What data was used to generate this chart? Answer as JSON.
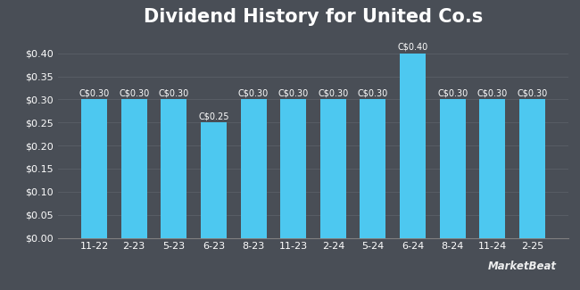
{
  "title": "Dividend History for United Co.s",
  "categories": [
    "11-22",
    "2-23",
    "5-23",
    "6-23",
    "8-23",
    "11-23",
    "2-24",
    "5-24",
    "6-24",
    "8-24",
    "11-24",
    "2-25"
  ],
  "values": [
    0.3,
    0.3,
    0.3,
    0.25,
    0.3,
    0.3,
    0.3,
    0.3,
    0.4,
    0.3,
    0.3,
    0.3
  ],
  "labels": [
    "C$0.30",
    "C$0.30",
    "C$0.30",
    "C$0.25",
    "C$0.30",
    "C$0.30",
    "C$0.30",
    "C$0.30",
    "C$0.40",
    "C$0.30",
    "C$0.30",
    "C$0.30"
  ],
  "bar_color": "#4DC8F0",
  "background_color": "#494E56",
  "plot_bg_color": "#494E56",
  "grid_color": "#5A5F67",
  "text_color": "#FFFFFF",
  "ylim": [
    0,
    0.44
  ],
  "yticks": [
    0.0,
    0.05,
    0.1,
    0.15,
    0.2,
    0.25,
    0.3,
    0.35,
    0.4
  ],
  "title_fontsize": 15,
  "label_fontsize": 7,
  "tick_fontsize": 8,
  "watermark": "MarketBeat"
}
